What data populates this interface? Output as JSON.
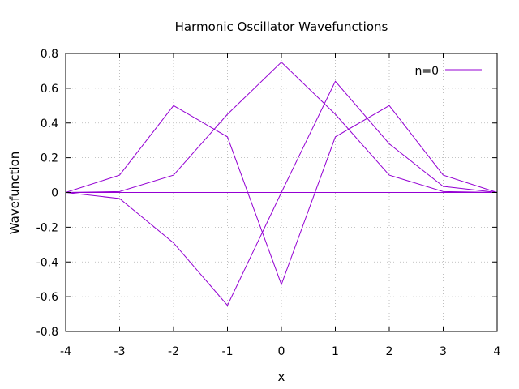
{
  "chart_data": {
    "type": "line",
    "title": "Harmonic Oscillator Wavefunctions",
    "xlabel": "x",
    "ylabel": "Wavefunction",
    "xlim": [
      -4,
      4
    ],
    "ylim": [
      -0.8,
      0.8
    ],
    "x_ticks": [
      "-4",
      "-3",
      "-2",
      "-1",
      "0",
      "1",
      "2",
      "3",
      "4"
    ],
    "y_ticks": [
      "-0.8",
      "-0.6",
      "-0.4",
      "-0.2",
      "0",
      "0.2",
      "0.4",
      "0.6",
      "0.8"
    ],
    "grid": true,
    "grid_style": "dotted",
    "legend_position": "top-right",
    "legend_label": "n=0",
    "line_color": "#9400d3",
    "x": [
      -4,
      -3,
      -2,
      -1,
      0,
      1,
      2,
      3,
      4
    ],
    "series": [
      {
        "name": "n=0",
        "values": [
          0.0,
          0.1,
          0.5,
          0.32,
          -0.53,
          0.32,
          0.5,
          0.1,
          0.0
        ]
      },
      {
        "values": [
          0.0,
          0.005,
          0.1,
          0.45,
          0.75,
          0.45,
          0.1,
          0.005,
          0.0
        ]
      },
      {
        "values": [
          0.0,
          -0.035,
          -0.29,
          -0.65,
          0.0,
          0.64,
          0.28,
          0.035,
          0.0
        ]
      },
      {
        "values": [
          0.0,
          0.0,
          0.0,
          0.0,
          0.0,
          0.0,
          0.0,
          0.0,
          0.0
        ]
      }
    ]
  }
}
